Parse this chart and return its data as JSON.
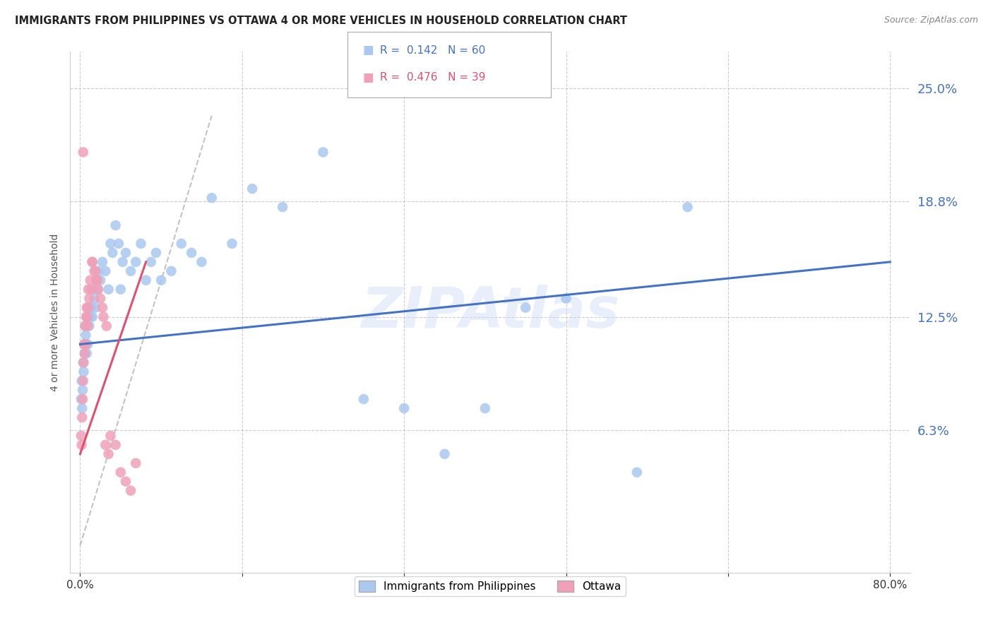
{
  "title": "IMMIGRANTS FROM PHILIPPINES VS OTTAWA 4 OR MORE VEHICLES IN HOUSEHOLD CORRELATION CHART",
  "source": "Source: ZipAtlas.com",
  "ylabel": "4 or more Vehicles in Household",
  "watermark": "ZIPAtlas",
  "xlim": [
    -1.0,
    82.0
  ],
  "ylim": [
    -1.5,
    27.0
  ],
  "ytick_positions": [
    6.3,
    12.5,
    18.8,
    25.0
  ],
  "ytick_labels": [
    "6.3%",
    "12.5%",
    "18.8%",
    "25.0%"
  ],
  "series1_name": "Immigrants from Philippines",
  "series1_color": "#aac8f0",
  "series1_R": 0.142,
  "series1_N": 60,
  "series1_trendline_color": "#4472c4",
  "series2_name": "Ottawa",
  "series2_color": "#f0a0b8",
  "series2_R": 0.476,
  "series2_N": 39,
  "series2_trendline_color": "#e05070",
  "blue_trend_x0": 0.0,
  "blue_trend_y0": 11.0,
  "blue_trend_x1": 80.0,
  "blue_trend_y1": 15.5,
  "pink_trend_x0": 0.0,
  "pink_trend_y0": 5.0,
  "pink_trend_x1": 6.5,
  "pink_trend_y1": 15.5,
  "gray_dashed_x0": 0.0,
  "gray_dashed_y0": 0.0,
  "gray_dashed_x1": 13.0,
  "gray_dashed_y1": 23.5,
  "blue_points_x": [
    0.1,
    0.15,
    0.2,
    0.25,
    0.3,
    0.35,
    0.4,
    0.45,
    0.5,
    0.55,
    0.6,
    0.65,
    0.7,
    0.75,
    0.8,
    0.9,
    1.0,
    1.1,
    1.2,
    1.3,
    1.4,
    1.5,
    1.6,
    1.7,
    1.8,
    2.0,
    2.2,
    2.5,
    2.8,
    3.0,
    3.2,
    3.5,
    3.8,
    4.0,
    4.2,
    4.5,
    5.0,
    5.5,
    6.0,
    6.5,
    7.0,
    7.5,
    8.0,
    9.0,
    10.0,
    11.0,
    12.0,
    13.0,
    15.0,
    17.0,
    20.0,
    24.0,
    28.0,
    32.0,
    36.0,
    40.0,
    44.0,
    48.0,
    55.0,
    60.0
  ],
  "blue_points_y": [
    8.0,
    9.0,
    7.5,
    8.5,
    10.0,
    9.5,
    11.0,
    10.5,
    12.0,
    11.5,
    11.0,
    10.5,
    12.5,
    11.0,
    13.0,
    12.0,
    12.5,
    13.0,
    12.5,
    14.0,
    13.5,
    13.0,
    14.5,
    14.0,
    15.0,
    14.5,
    15.5,
    15.0,
    14.0,
    16.5,
    16.0,
    17.5,
    16.5,
    14.0,
    15.5,
    16.0,
    15.0,
    15.5,
    16.5,
    14.5,
    15.5,
    16.0,
    14.5,
    15.0,
    16.5,
    16.0,
    15.5,
    19.0,
    16.5,
    19.5,
    18.5,
    21.5,
    8.0,
    7.5,
    5.0,
    7.5,
    13.0,
    13.5,
    4.0,
    18.5
  ],
  "pink_points_x": [
    0.1,
    0.15,
    0.2,
    0.25,
    0.3,
    0.35,
    0.4,
    0.45,
    0.5,
    0.55,
    0.6,
    0.65,
    0.7,
    0.75,
    0.8,
    0.9,
    1.0,
    1.1,
    1.2,
    1.4,
    1.6,
    1.8,
    2.0,
    2.2,
    2.5,
    2.8,
    3.0,
    3.5,
    4.0,
    4.5,
    5.0,
    5.5,
    2.3,
    2.6,
    0.8,
    1.2,
    1.5,
    1.7,
    0.3
  ],
  "pink_points_y": [
    6.0,
    5.5,
    7.0,
    8.0,
    9.0,
    10.0,
    11.0,
    10.5,
    12.0,
    11.0,
    12.5,
    13.0,
    12.5,
    12.0,
    14.0,
    13.5,
    14.5,
    14.0,
    15.5,
    15.0,
    14.5,
    14.0,
    13.5,
    13.0,
    5.5,
    5.0,
    6.0,
    5.5,
    4.0,
    3.5,
    3.0,
    4.5,
    12.5,
    12.0,
    13.0,
    15.5,
    15.0,
    14.5,
    21.5
  ]
}
